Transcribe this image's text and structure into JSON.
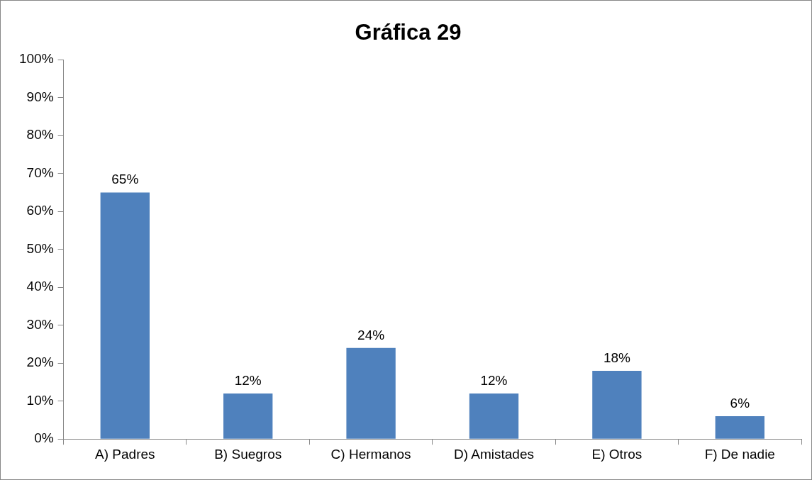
{
  "chart_data": {
    "type": "bar",
    "title": "Gráfica 29",
    "categories": [
      "A) Padres",
      "B) Suegros",
      "C) Hermanos",
      "D) Amistades",
      "E) Otros",
      "F) De nadie"
    ],
    "values": [
      65,
      12,
      24,
      12,
      18,
      6
    ],
    "value_labels": [
      "65%",
      "12%",
      "24%",
      "12%",
      "18%",
      "6%"
    ],
    "color": "#4f81bd",
    "ylim": [
      0,
      100
    ],
    "yticks": [
      {
        "value": 0,
        "label": "0%"
      },
      {
        "value": 10,
        "label": "10%"
      },
      {
        "value": 20,
        "label": "20%"
      },
      {
        "value": 30,
        "label": "30%"
      },
      {
        "value": 40,
        "label": "40%"
      },
      {
        "value": 50,
        "label": "50%"
      },
      {
        "value": 60,
        "label": "60%"
      },
      {
        "value": 70,
        "label": "70%"
      },
      {
        "value": 80,
        "label": "80%"
      },
      {
        "value": 90,
        "label": "90%"
      },
      {
        "value": 100,
        "label": "100%"
      }
    ]
  }
}
